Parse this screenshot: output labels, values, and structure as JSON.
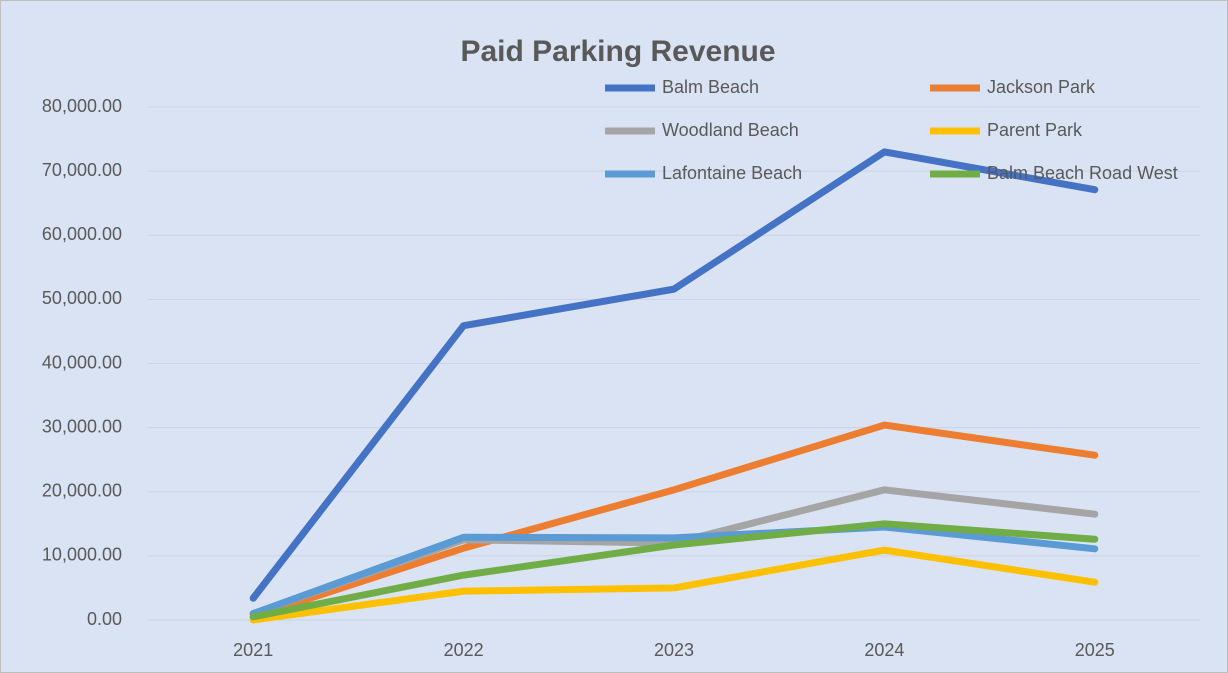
{
  "chart_data": {
    "type": "line",
    "title": "Paid Parking Revenue",
    "categories": [
      "2021",
      "2022",
      "2023",
      "2024",
      "2025"
    ],
    "series": [
      {
        "name": "Balm Beach",
        "color": "#4472c4",
        "values": [
          3400,
          45900,
          51600,
          73000,
          67100
        ]
      },
      {
        "name": "Jackson Park",
        "color": "#ed7d31",
        "values": [
          500,
          11200,
          20300,
          30400,
          25700
        ]
      },
      {
        "name": "Woodland Beach",
        "color": "#a5a5a5",
        "values": [
          1000,
          12500,
          12000,
          20300,
          16500
        ]
      },
      {
        "name": "Parent Park",
        "color": "#ffc000",
        "values": [
          0,
          4500,
          5000,
          10900,
          5900
        ]
      },
      {
        "name": "Lafontaine Beach",
        "color": "#5b9bd5",
        "values": [
          1000,
          12900,
          12800,
          14500,
          11100
        ]
      },
      {
        "name": "Balm Beach Road West",
        "color": "#70ad47",
        "values": [
          500,
          7000,
          11700,
          15000,
          12600
        ]
      }
    ],
    "ylim": [
      0,
      80000
    ],
    "yticks": [
      {
        "value": 0,
        "label": "0.00"
      },
      {
        "value": 10000,
        "label": "10,000.00"
      },
      {
        "value": 20000,
        "label": "20,000.00"
      },
      {
        "value": 30000,
        "label": "30,000.00"
      },
      {
        "value": 40000,
        "label": "40,000.00"
      },
      {
        "value": 50000,
        "label": "50,000.00"
      },
      {
        "value": 60000,
        "label": "60,000.00"
      },
      {
        "value": 70000,
        "label": "70,000.00"
      },
      {
        "value": 80000,
        "label": "80,000.00"
      }
    ],
    "grid": true,
    "legend": "top-right"
  }
}
